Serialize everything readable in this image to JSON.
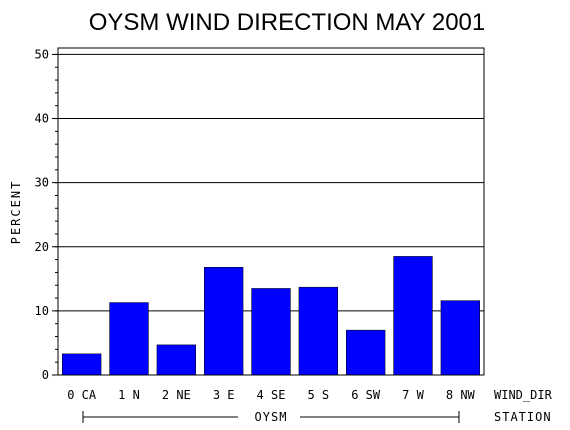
{
  "chart_data": {
    "type": "bar",
    "title": "OYSM WIND DIRECTION MAY 2001",
    "ylabel": "PERCENT",
    "xlabel": "WIND_DIR",
    "group_label": "STATION",
    "group_value": "OYSM",
    "ylim": [
      0,
      51
    ],
    "yticks": [
      "0",
      "10",
      "20",
      "30",
      "40",
      "50"
    ],
    "grid": true,
    "categories": [
      "0 CA",
      "1 N",
      "2 NE",
      "3 E",
      "4 SE",
      "5 S",
      "6 SW",
      "7 W",
      "8 NW"
    ],
    "values": [
      3.3,
      11.3,
      4.7,
      16.8,
      13.5,
      13.7,
      7.0,
      18.5,
      11.6
    ],
    "bar_color": "#0000ff"
  }
}
